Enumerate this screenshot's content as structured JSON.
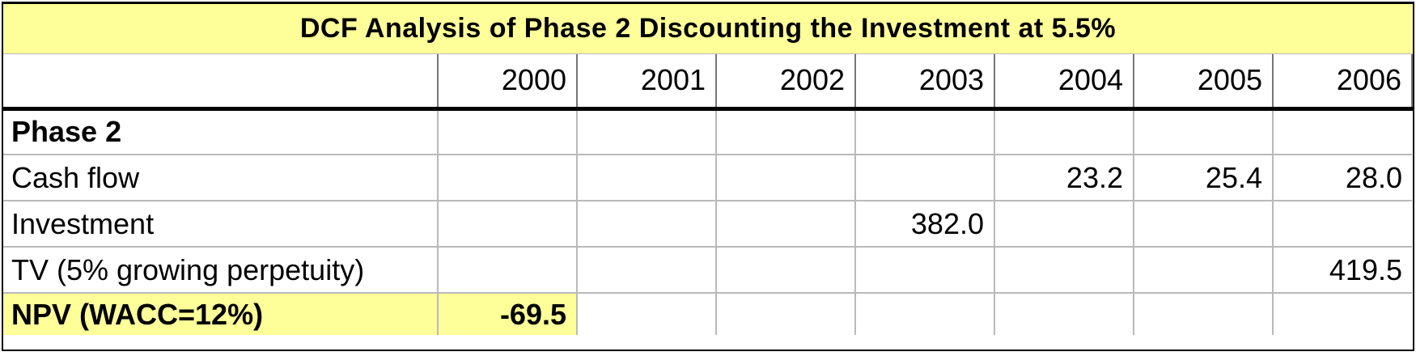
{
  "title": "DCF Analysis of Phase 2 Discounting the Investment at 5.5%",
  "years": [
    "2000",
    "2001",
    "2002",
    "2003",
    "2004",
    "2005",
    "2006"
  ],
  "rows": [
    {
      "label": "Phase 2",
      "bold": true,
      "values": [
        "",
        "",
        "",
        "",
        "",
        "",
        ""
      ]
    },
    {
      "label": "Cash flow",
      "bold": false,
      "values": [
        "",
        "",
        "",
        "",
        "23.2",
        "25.4",
        "28.0"
      ]
    },
    {
      "label": "Investment",
      "bold": false,
      "values": [
        "",
        "",
        "",
        "382.0",
        "",
        "",
        ""
      ]
    },
    {
      "label": "TV (5% growing perpetuity)",
      "bold": false,
      "values": [
        "",
        "",
        "",
        "",
        "",
        "",
        "419.5"
      ]
    },
    {
      "label": "NPV (WACC=12%)",
      "bold": true,
      "highlight": true,
      "values": [
        "-69.5",
        "",
        "",
        "",
        "",
        "",
        ""
      ]
    }
  ],
  "colors": {
    "highlight": "#ffff99",
    "grid": "#b9b9b9",
    "rule": "#000000"
  }
}
